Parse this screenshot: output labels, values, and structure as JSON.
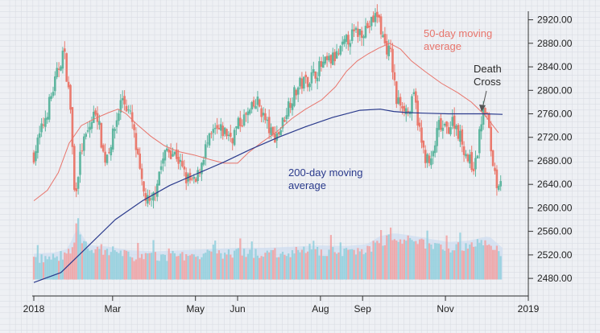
{
  "chart_data": {
    "type": "candlestick",
    "title": "",
    "xlabel": "",
    "ylabel": "",
    "grid": true,
    "ylim": [
      2450,
      2940
    ],
    "y_ticks": [
      "2480.00",
      "2520.00",
      "2560.00",
      "2600.00",
      "2640.00",
      "2680.00",
      "2720.00",
      "2760.00",
      "2800.00",
      "2840.00",
      "2880.00",
      "2920.00"
    ],
    "y_tick_values": [
      2480,
      2520,
      2560,
      2600,
      2640,
      2680,
      2720,
      2760,
      2800,
      2840,
      2880,
      2920
    ],
    "x_ticks": [
      {
        "label": "2018",
        "day": 0
      },
      {
        "label": "Mar",
        "day": 58
      },
      {
        "label": "May",
        "day": 119
      },
      {
        "label": "Jun",
        "day": 150
      },
      {
        "label": "Aug",
        "day": 211
      },
      {
        "label": "Sep",
        "day": 242
      },
      {
        "label": "Nov",
        "day": 303
      },
      {
        "label": "2019",
        "day": 364
      }
    ],
    "price_keypoints": [
      [
        0,
        2690
      ],
      [
        8,
        2750
      ],
      [
        14,
        2800
      ],
      [
        22,
        2870
      ],
      [
        27,
        2770
      ],
      [
        30,
        2620
      ],
      [
        35,
        2700
      ],
      [
        40,
        2730
      ],
      [
        46,
        2770
      ],
      [
        52,
        2680
      ],
      [
        58,
        2720
      ],
      [
        65,
        2790
      ],
      [
        72,
        2750
      ],
      [
        80,
        2630
      ],
      [
        86,
        2600
      ],
      [
        92,
        2660
      ],
      [
        98,
        2700
      ],
      [
        105,
        2690
      ],
      [
        112,
        2650
      ],
      [
        119,
        2640
      ],
      [
        126,
        2700
      ],
      [
        133,
        2730
      ],
      [
        140,
        2730
      ],
      [
        146,
        2720
      ],
      [
        150,
        2740
      ],
      [
        158,
        2760
      ],
      [
        165,
        2780
      ],
      [
        170,
        2750
      ],
      [
        176,
        2720
      ],
      [
        181,
        2730
      ],
      [
        188,
        2780
      ],
      [
        196,
        2810
      ],
      [
        203,
        2820
      ],
      [
        211,
        2840
      ],
      [
        218,
        2850
      ],
      [
        224,
        2860
      ],
      [
        232,
        2890
      ],
      [
        240,
        2900
      ],
      [
        247,
        2910
      ],
      [
        253,
        2930
      ],
      [
        258,
        2880
      ],
      [
        263,
        2860
      ],
      [
        267,
        2780
      ],
      [
        271,
        2780
      ],
      [
        276,
        2760
      ],
      [
        280,
        2790
      ],
      [
        286,
        2700
      ],
      [
        292,
        2670
      ],
      [
        298,
        2740
      ],
      [
        303,
        2730
      ],
      [
        309,
        2750
      ],
      [
        314,
        2720
      ],
      [
        320,
        2680
      ],
      [
        325,
        2670
      ],
      [
        330,
        2760
      ],
      [
        333,
        2770
      ],
      [
        337,
        2690
      ],
      [
        341,
        2640
      ],
      [
        345,
        2660
      ]
    ],
    "series": [
      {
        "name": "50-day moving average",
        "color": "#e8756c",
        "points": [
          [
            0,
            2612
          ],
          [
            10,
            2630
          ],
          [
            18,
            2660
          ],
          [
            26,
            2710
          ],
          [
            35,
            2740
          ],
          [
            45,
            2752
          ],
          [
            55,
            2762
          ],
          [
            62,
            2768
          ],
          [
            68,
            2760
          ],
          [
            76,
            2742
          ],
          [
            86,
            2722
          ],
          [
            96,
            2706
          ],
          [
            106,
            2696
          ],
          [
            118,
            2690
          ],
          [
            130,
            2682
          ],
          [
            140,
            2676
          ],
          [
            150,
            2676
          ],
          [
            158,
            2694
          ],
          [
            168,
            2712
          ],
          [
            178,
            2728
          ],
          [
            190,
            2752
          ],
          [
            200,
            2768
          ],
          [
            212,
            2784
          ],
          [
            222,
            2806
          ],
          [
            230,
            2832
          ],
          [
            238,
            2850
          ],
          [
            246,
            2862
          ],
          [
            254,
            2872
          ],
          [
            262,
            2880
          ],
          [
            270,
            2870
          ],
          [
            278,
            2850
          ],
          [
            288,
            2832
          ],
          [
            300,
            2812
          ],
          [
            312,
            2796
          ],
          [
            322,
            2780
          ],
          [
            332,
            2758
          ],
          [
            342,
            2728
          ]
        ]
      },
      {
        "name": "200-day moving average",
        "color": "#2a3a8c",
        "points": [
          [
            0,
            2473
          ],
          [
            20,
            2490
          ],
          [
            40,
            2535
          ],
          [
            60,
            2580
          ],
          [
            80,
            2612
          ],
          [
            100,
            2638
          ],
          [
            120,
            2658
          ],
          [
            140,
            2678
          ],
          [
            160,
            2700
          ],
          [
            180,
            2720
          ],
          [
            200,
            2738
          ],
          [
            220,
            2754
          ],
          [
            240,
            2766
          ],
          [
            255,
            2768
          ],
          [
            265,
            2764
          ],
          [
            275,
            2762
          ],
          [
            290,
            2761
          ],
          [
            305,
            2760
          ],
          [
            320,
            2760
          ],
          [
            332,
            2760
          ],
          [
            345,
            2759
          ]
        ]
      }
    ],
    "volume_keypoints": [
      [
        0,
        2510
      ],
      [
        15,
        2512
      ],
      [
        25,
        2518
      ],
      [
        32,
        2555
      ],
      [
        40,
        2525
      ],
      [
        55,
        2522
      ],
      [
        70,
        2516
      ],
      [
        90,
        2514
      ],
      [
        110,
        2516
      ],
      [
        130,
        2518
      ],
      [
        150,
        2520
      ],
      [
        170,
        2520
      ],
      [
        190,
        2522
      ],
      [
        210,
        2524
      ],
      [
        230,
        2523
      ],
      [
        245,
        2526
      ],
      [
        255,
        2540
      ],
      [
        265,
        2545
      ],
      [
        275,
        2542
      ],
      [
        290,
        2536
      ],
      [
        305,
        2530
      ],
      [
        320,
        2532
      ],
      [
        335,
        2540
      ],
      [
        340,
        2530
      ],
      [
        345,
        2520
      ]
    ],
    "annotations": [
      {
        "name": "ma50-label",
        "lines": [
          "50-day moving",
          "average"
        ],
        "color": "#e8756c"
      },
      {
        "name": "ma200-label",
        "lines": [
          "200-day moving",
          "average"
        ],
        "color": "#2a3a8c"
      },
      {
        "name": "death-cross-label",
        "lines": [
          "Death",
          "Cross"
        ],
        "color": "#2b2b2b"
      }
    ],
    "colors": {
      "background": "#eef0f4",
      "grid": "#d9dde3",
      "up_candle": "#5fb6a0",
      "down_candle": "#ea7a6e",
      "volume_up": "#8fcfdc",
      "volume_down": "#f2a0a0",
      "volume_area": "#c7d8f0",
      "axis": "#333333"
    }
  }
}
